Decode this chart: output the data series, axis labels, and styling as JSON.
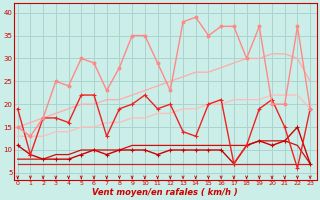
{
  "background_color": "#cceee8",
  "grid_color": "#aad4ce",
  "x_label": "Vent moyen/en rafales ( km/h )",
  "x_ticks": [
    0,
    1,
    2,
    3,
    4,
    5,
    6,
    7,
    8,
    9,
    10,
    11,
    12,
    13,
    14,
    15,
    16,
    17,
    18,
    19,
    20,
    21,
    22,
    23
  ],
  "y_ticks": [
    5,
    10,
    15,
    20,
    25,
    30,
    35,
    40
  ],
  "ylim": [
    3.5,
    42
  ],
  "xlim": [
    -0.3,
    23.5
  ],
  "lines": [
    {
      "x": [
        0,
        1,
        2,
        3,
        4,
        5,
        6,
        7,
        8,
        9,
        10,
        11,
        12,
        13,
        14,
        15,
        16,
        17,
        18,
        19,
        20,
        21,
        22,
        23
      ],
      "y": [
        11,
        9,
        8,
        8,
        8,
        9,
        10,
        9,
        10,
        10,
        10,
        9,
        10,
        10,
        10,
        10,
        10,
        7,
        11,
        12,
        11,
        12,
        15,
        7
      ],
      "color": "#cc0000",
      "lw": 1.0,
      "marker": "+",
      "ms": 3.5,
      "zorder": 4
    },
    {
      "x": [
        0,
        1,
        2,
        3,
        4,
        5,
        6,
        7,
        8,
        9,
        10,
        11,
        12,
        13,
        14,
        15,
        16,
        17,
        18,
        19,
        20,
        21,
        22,
        23
      ],
      "y": [
        19,
        9,
        17,
        17,
        16,
        22,
        22,
        13,
        19,
        20,
        22,
        19,
        20,
        14,
        13,
        20,
        21,
        7,
        11,
        19,
        21,
        15,
        6,
        19
      ],
      "color": "#ee2222",
      "lw": 1.0,
      "marker": "+",
      "ms": 3.5,
      "zorder": 4
    },
    {
      "x": [
        0,
        1,
        2,
        3,
        4,
        5,
        6,
        7,
        8,
        9,
        10,
        11,
        12,
        13,
        14,
        15,
        16,
        17,
        18,
        19,
        20,
        21,
        22,
        23
      ],
      "y": [
        7,
        7,
        7,
        7,
        7,
        7,
        7,
        7,
        7,
        7,
        7,
        7,
        7,
        7,
        7,
        7,
        7,
        7,
        7,
        7,
        7,
        7,
        7,
        7
      ],
      "color": "#cc2222",
      "lw": 0.9,
      "marker": null,
      "ms": 0,
      "zorder": 3
    },
    {
      "x": [
        0,
        1,
        2,
        3,
        4,
        5,
        6,
        7,
        8,
        9,
        10,
        11,
        12,
        13,
        14,
        15,
        16,
        17,
        18,
        19,
        20,
        21,
        22,
        23
      ],
      "y": [
        8,
        8,
        8,
        9,
        9,
        10,
        10,
        10,
        10,
        11,
        11,
        11,
        11,
        11,
        11,
        11,
        11,
        11,
        11,
        12,
        12,
        12,
        11,
        7
      ],
      "color": "#cc1111",
      "lw": 0.9,
      "marker": null,
      "ms": 0,
      "zorder": 3
    },
    {
      "x": [
        0,
        1,
        2,
        3,
        4,
        5,
        6,
        7,
        8,
        9,
        10,
        11,
        12,
        13,
        14,
        15,
        16,
        17,
        18,
        19,
        20,
        21,
        22,
        23
      ],
      "y": [
        15,
        13,
        17,
        25,
        24,
        30,
        29,
        23,
        28,
        35,
        35,
        29,
        23,
        38,
        39,
        35,
        37,
        37,
        30,
        37,
        20,
        20,
        37,
        19
      ],
      "color": "#ff8888",
      "lw": 1.0,
      "marker": "o",
      "ms": 2.0,
      "zorder": 4
    },
    {
      "x": [
        0,
        1,
        2,
        3,
        4,
        5,
        6,
        7,
        8,
        9,
        10,
        11,
        12,
        13,
        14,
        15,
        16,
        17,
        18,
        19,
        20,
        21,
        22,
        23
      ],
      "y": [
        15,
        16,
        17,
        18,
        19,
        20,
        20,
        21,
        21,
        22,
        23,
        24,
        25,
        26,
        27,
        27,
        28,
        29,
        30,
        30,
        31,
        31,
        30,
        25
      ],
      "color": "#ffaaaa",
      "lw": 0.9,
      "marker": null,
      "ms": 0,
      "zorder": 2
    },
    {
      "x": [
        0,
        1,
        2,
        3,
        4,
        5,
        6,
        7,
        8,
        9,
        10,
        11,
        12,
        13,
        14,
        15,
        16,
        17,
        18,
        19,
        20,
        21,
        22,
        23
      ],
      "y": [
        13,
        13,
        13,
        14,
        14,
        15,
        15,
        16,
        16,
        17,
        17,
        18,
        18,
        19,
        19,
        20,
        20,
        21,
        21,
        21,
        22,
        22,
        22,
        19
      ],
      "color": "#ffbbbb",
      "lw": 0.9,
      "marker": null,
      "ms": 0,
      "zorder": 2
    }
  ]
}
